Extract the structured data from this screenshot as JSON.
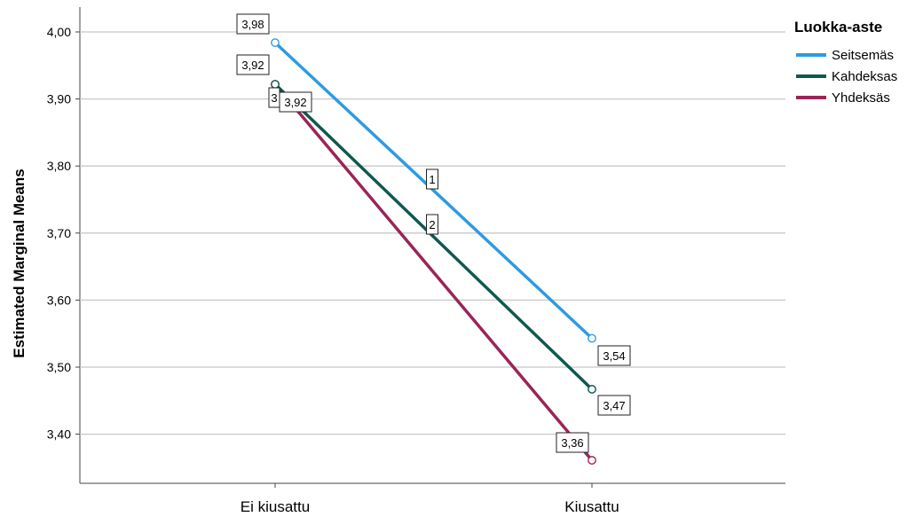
{
  "chart_data": {
    "type": "line",
    "ylabel": "Estimated Marginal Means",
    "categories": [
      "Ei kiusattu",
      "Kiusattu"
    ],
    "ylim": [
      3.33,
      4.04
    ],
    "yticks": [
      "4,00",
      "3,90",
      "3,80",
      "3,70",
      "3,60",
      "3,50",
      "3,40"
    ],
    "ytick_values": [
      4.0,
      3.9,
      3.8,
      3.7,
      3.6,
      3.5,
      3.4
    ],
    "grid": true,
    "legend": {
      "title": "Luokka-aste",
      "placement": "top-right"
    },
    "series": [
      {
        "name": "Seitsemäs",
        "color": "#2E9BE0",
        "values": [
          3.984,
          3.543
        ],
        "labels": [
          "3,98",
          "3,54"
        ],
        "line_marker": "1"
      },
      {
        "name": "Kahdeksas",
        "color": "#10584F",
        "values": [
          3.922,
          3.467
        ],
        "labels": [
          "3,92",
          "3,47"
        ],
        "line_marker": "2"
      },
      {
        "name": "Yhdeksäs",
        "color": "#9A2557",
        "values": [
          3.922,
          3.361
        ],
        "labels": [
          "3,92",
          "3,36"
        ],
        "line_marker": "3"
      }
    ]
  }
}
